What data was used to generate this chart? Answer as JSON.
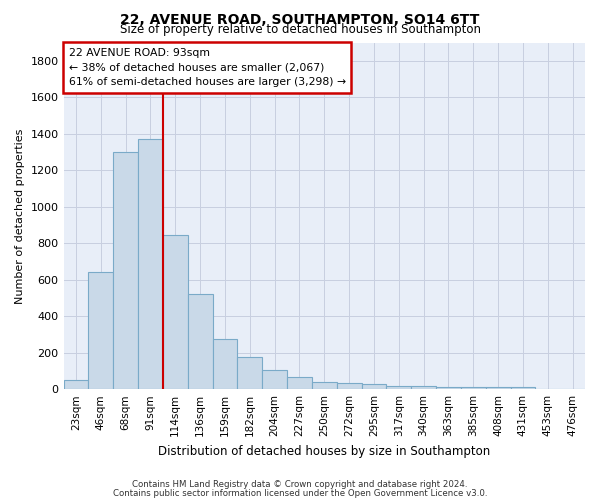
{
  "title1": "22, AVENUE ROAD, SOUTHAMPTON, SO14 6TT",
  "title2": "Size of property relative to detached houses in Southampton",
  "xlabel": "Distribution of detached houses by size in Southampton",
  "ylabel": "Number of detached properties",
  "categories": [
    "23sqm",
    "46sqm",
    "68sqm",
    "91sqm",
    "114sqm",
    "136sqm",
    "159sqm",
    "182sqm",
    "204sqm",
    "227sqm",
    "250sqm",
    "272sqm",
    "295sqm",
    "317sqm",
    "340sqm",
    "363sqm",
    "385sqm",
    "408sqm",
    "431sqm",
    "453sqm",
    "476sqm"
  ],
  "values": [
    50,
    640,
    1300,
    1370,
    845,
    520,
    275,
    175,
    105,
    65,
    40,
    35,
    30,
    20,
    15,
    10,
    10,
    10,
    10,
    0,
    0
  ],
  "bar_color": "#c9d9e8",
  "bar_edge_color": "#7aaac8",
  "red_line_color": "#cc0000",
  "annotation_line1": "22 AVENUE ROAD: 93sqm",
  "annotation_line2": "← 38% of detached houses are smaller (2,067)",
  "annotation_line3": "61% of semi-detached houses are larger (3,298) →",
  "annotation_box_color": "#ffffff",
  "annotation_box_edge": "#cc0000",
  "grid_color": "#c8cfe0",
  "background_color": "#e8eef8",
  "footer1": "Contains HM Land Registry data © Crown copyright and database right 2024.",
  "footer2": "Contains public sector information licensed under the Open Government Licence v3.0.",
  "ylim": [
    0,
    1900
  ],
  "yticks": [
    0,
    200,
    400,
    600,
    800,
    1000,
    1200,
    1400,
    1600,
    1800
  ]
}
